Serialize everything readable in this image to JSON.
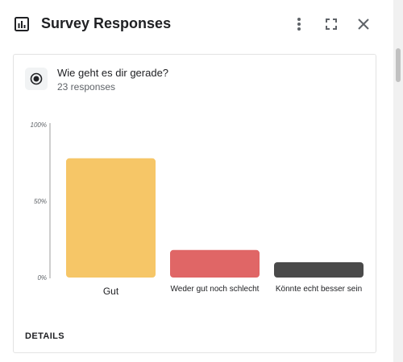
{
  "header": {
    "title": "Survey Responses",
    "icons": {
      "chart": "bar-chart-icon",
      "more": "more-vert-icon",
      "fullscreen": "fullscreen-icon",
      "close": "close-icon"
    }
  },
  "question": {
    "icon": "radio-button-icon",
    "title": "Wie geht es dir gerade?",
    "responses": "23 responses"
  },
  "details_label": "DETAILS",
  "chart_data": {
    "type": "bar",
    "categories": [
      "Gut",
      "Weder gut noch schlecht",
      "Könnte echt besser sein"
    ],
    "values": [
      78,
      18,
      10
    ],
    "unit": "%",
    "ylim": [
      0,
      100
    ],
    "yticks": [
      "0%",
      "50%",
      "100%"
    ],
    "colors": [
      "#f6c667",
      "#e06666",
      "#4a4a4a"
    ],
    "grid": false,
    "legend": "none"
  }
}
